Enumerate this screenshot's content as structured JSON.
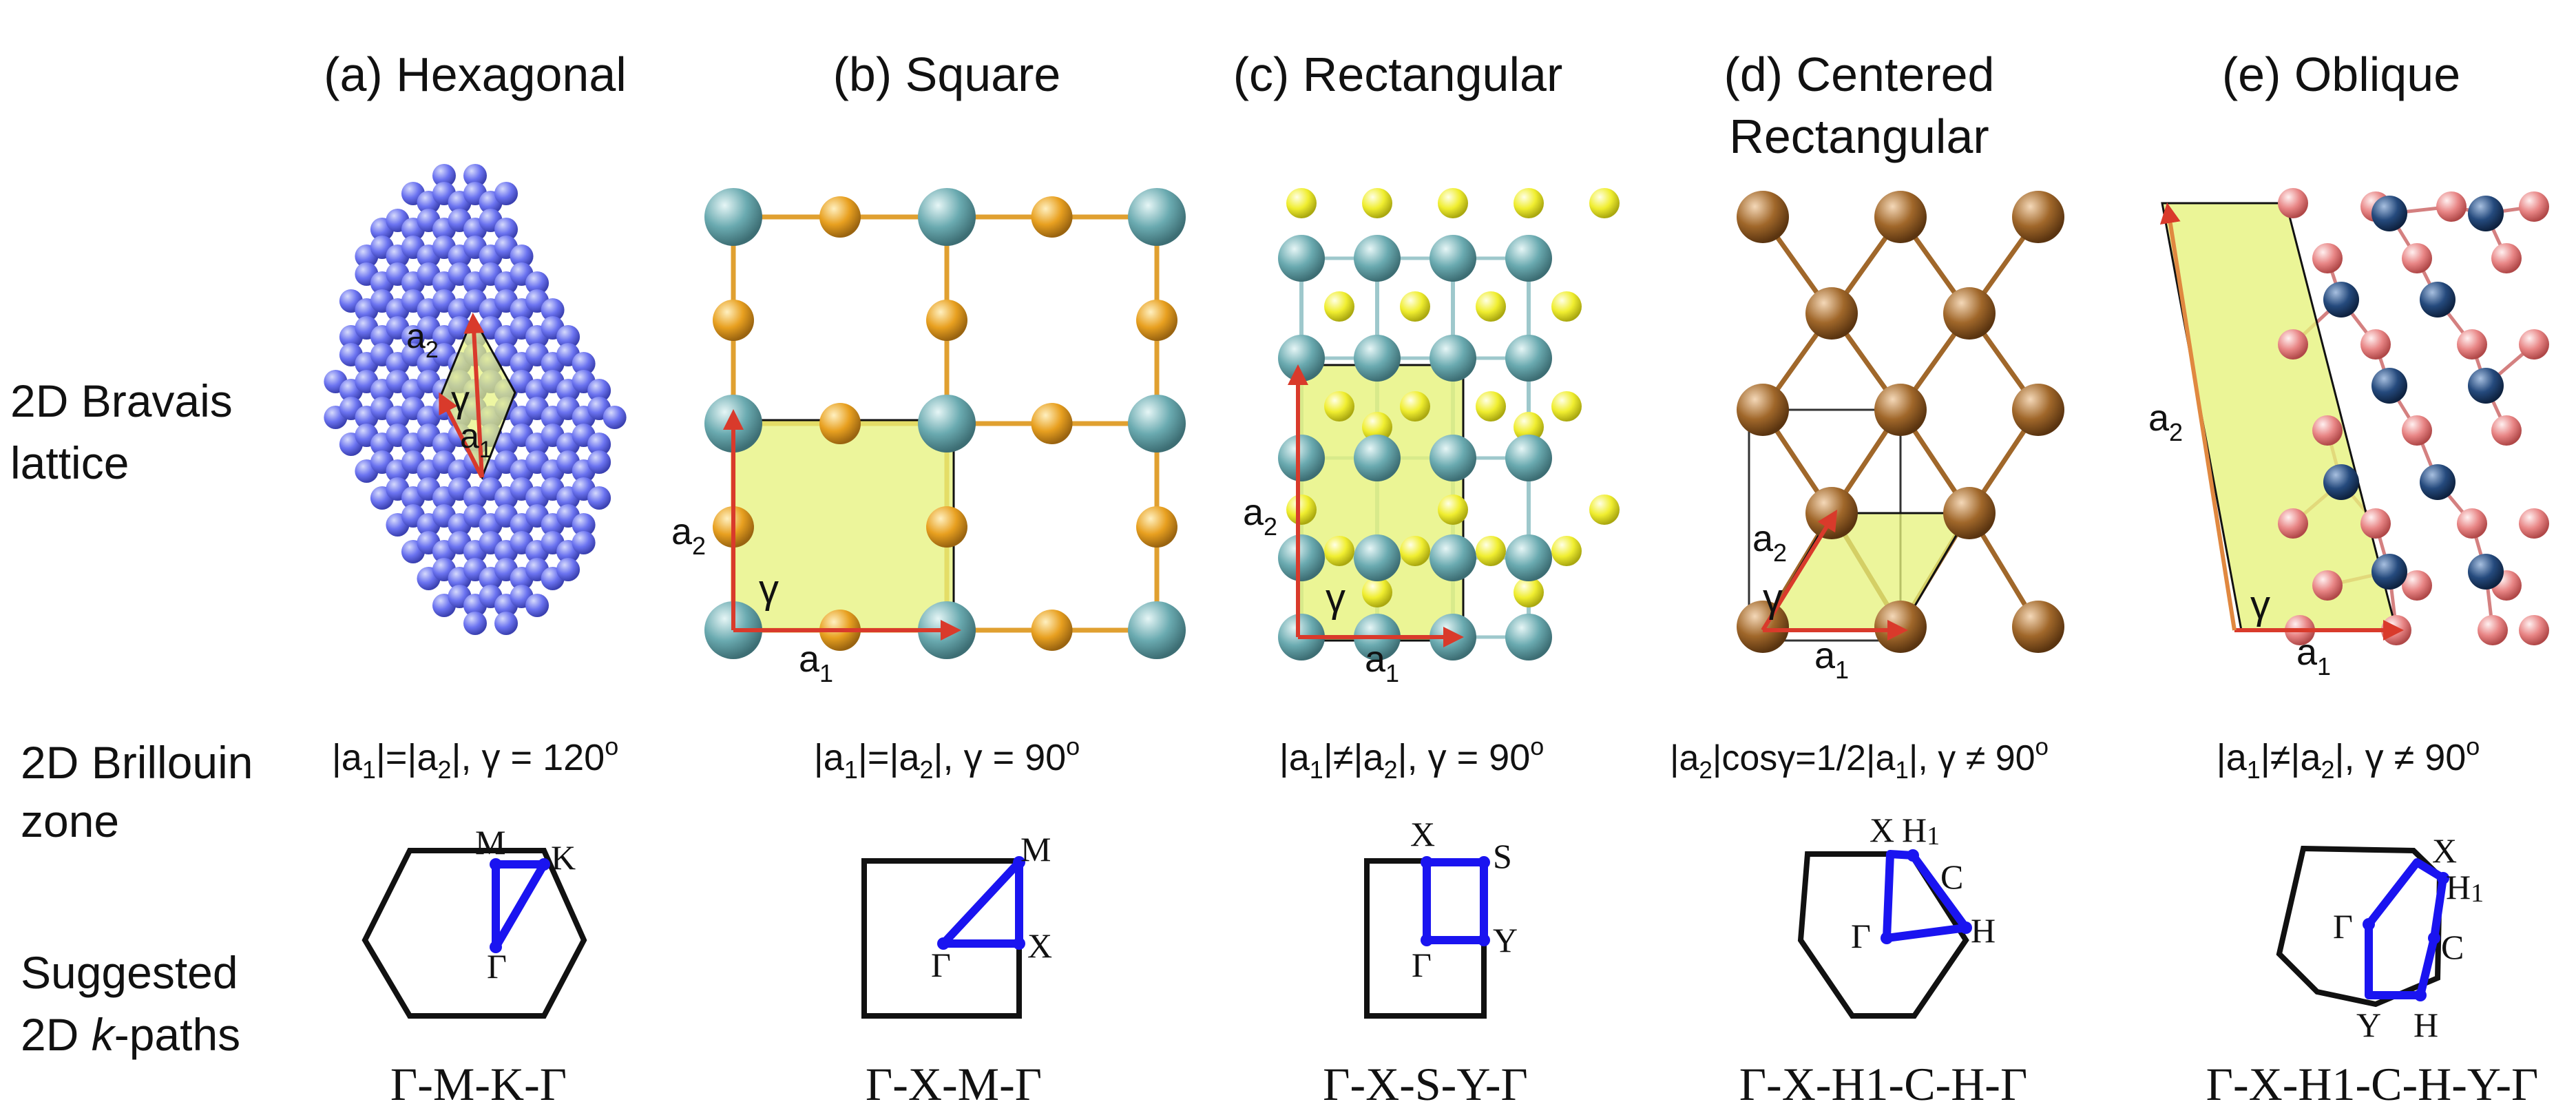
{
  "panels": {
    "a": {
      "title": "(a) Hexagonal"
    },
    "b": {
      "title": "(b) Square"
    },
    "c": {
      "title": "(c) Rectangular"
    },
    "d": {
      "title_line1": "(d) Centered",
      "title_line2": "Rectangular"
    },
    "e": {
      "title": "(e) Oblique"
    }
  },
  "row_labels": {
    "bravais_line1": "2D Bravais",
    "bravais_line2": "lattice",
    "bz_line1": "2D Brillouin",
    "bz_line2": "zone",
    "kpath_line1": "Suggested",
    "kpath_line2_pre": "2D ",
    "kpath_line2_k": "k",
    "kpath_line2_post": "-paths"
  },
  "lattice_labels": {
    "a1": "a",
    "a2": "a",
    "sub1": "1",
    "sub2": "2",
    "gamma": "γ"
  },
  "conditions": {
    "a": {
      "p1": "|a",
      "s1": "1",
      "p2": "|=|a",
      "s2": "2",
      "p3": "|, γ = 120",
      "sup": "o"
    },
    "b": {
      "p1": "|a",
      "s1": "1",
      "p2": "|=|a",
      "s2": "2",
      "p3": "|, γ = 90",
      "sup": "o"
    },
    "c": {
      "p1": "|a",
      "s1": "1",
      "p2": "|≠|a",
      "s2": "2",
      "p3": "|, γ = 90",
      "sup": "o"
    },
    "d": {
      "p1": "|a",
      "s1": "2",
      "p2": "|cosγ=1/2|a",
      "s2": "1",
      "p3": "|, γ ≠ 90",
      "sup": "o"
    },
    "e": {
      "p1": "|a",
      "s1": "1",
      "p2": "|≠|a",
      "s2": "2",
      "p3": "|, γ ≠ 90",
      "sup": "o"
    }
  },
  "bz_points": {
    "gamma": "Γ",
    "M": "M",
    "K": "K",
    "X": "X",
    "S": "S",
    "Y": "Y",
    "H": "H",
    "H1": "H1",
    "C": "C"
  },
  "kpaths": {
    "a": "Γ-M-K-Γ",
    "b": "Γ-X-M-Γ",
    "c": "Γ-X-S-Y-Γ",
    "d": "Γ-X-H1-C-H-Γ",
    "e": "Γ-X-H1-C-H-Y-Γ"
  },
  "colors": {
    "hex_atom": "#6b73f0",
    "teal_atom": "#6aaab0",
    "orange_atom": "#e8a020",
    "yellow_atom": "#f0ee30",
    "brown_atom": "#a0672a",
    "pink_atom": "#e88585",
    "navy_atom": "#254a7d",
    "cell_fill": "#e6f27a",
    "vector_red": "#d93a2b",
    "path_blue": "#1a14f0"
  }
}
